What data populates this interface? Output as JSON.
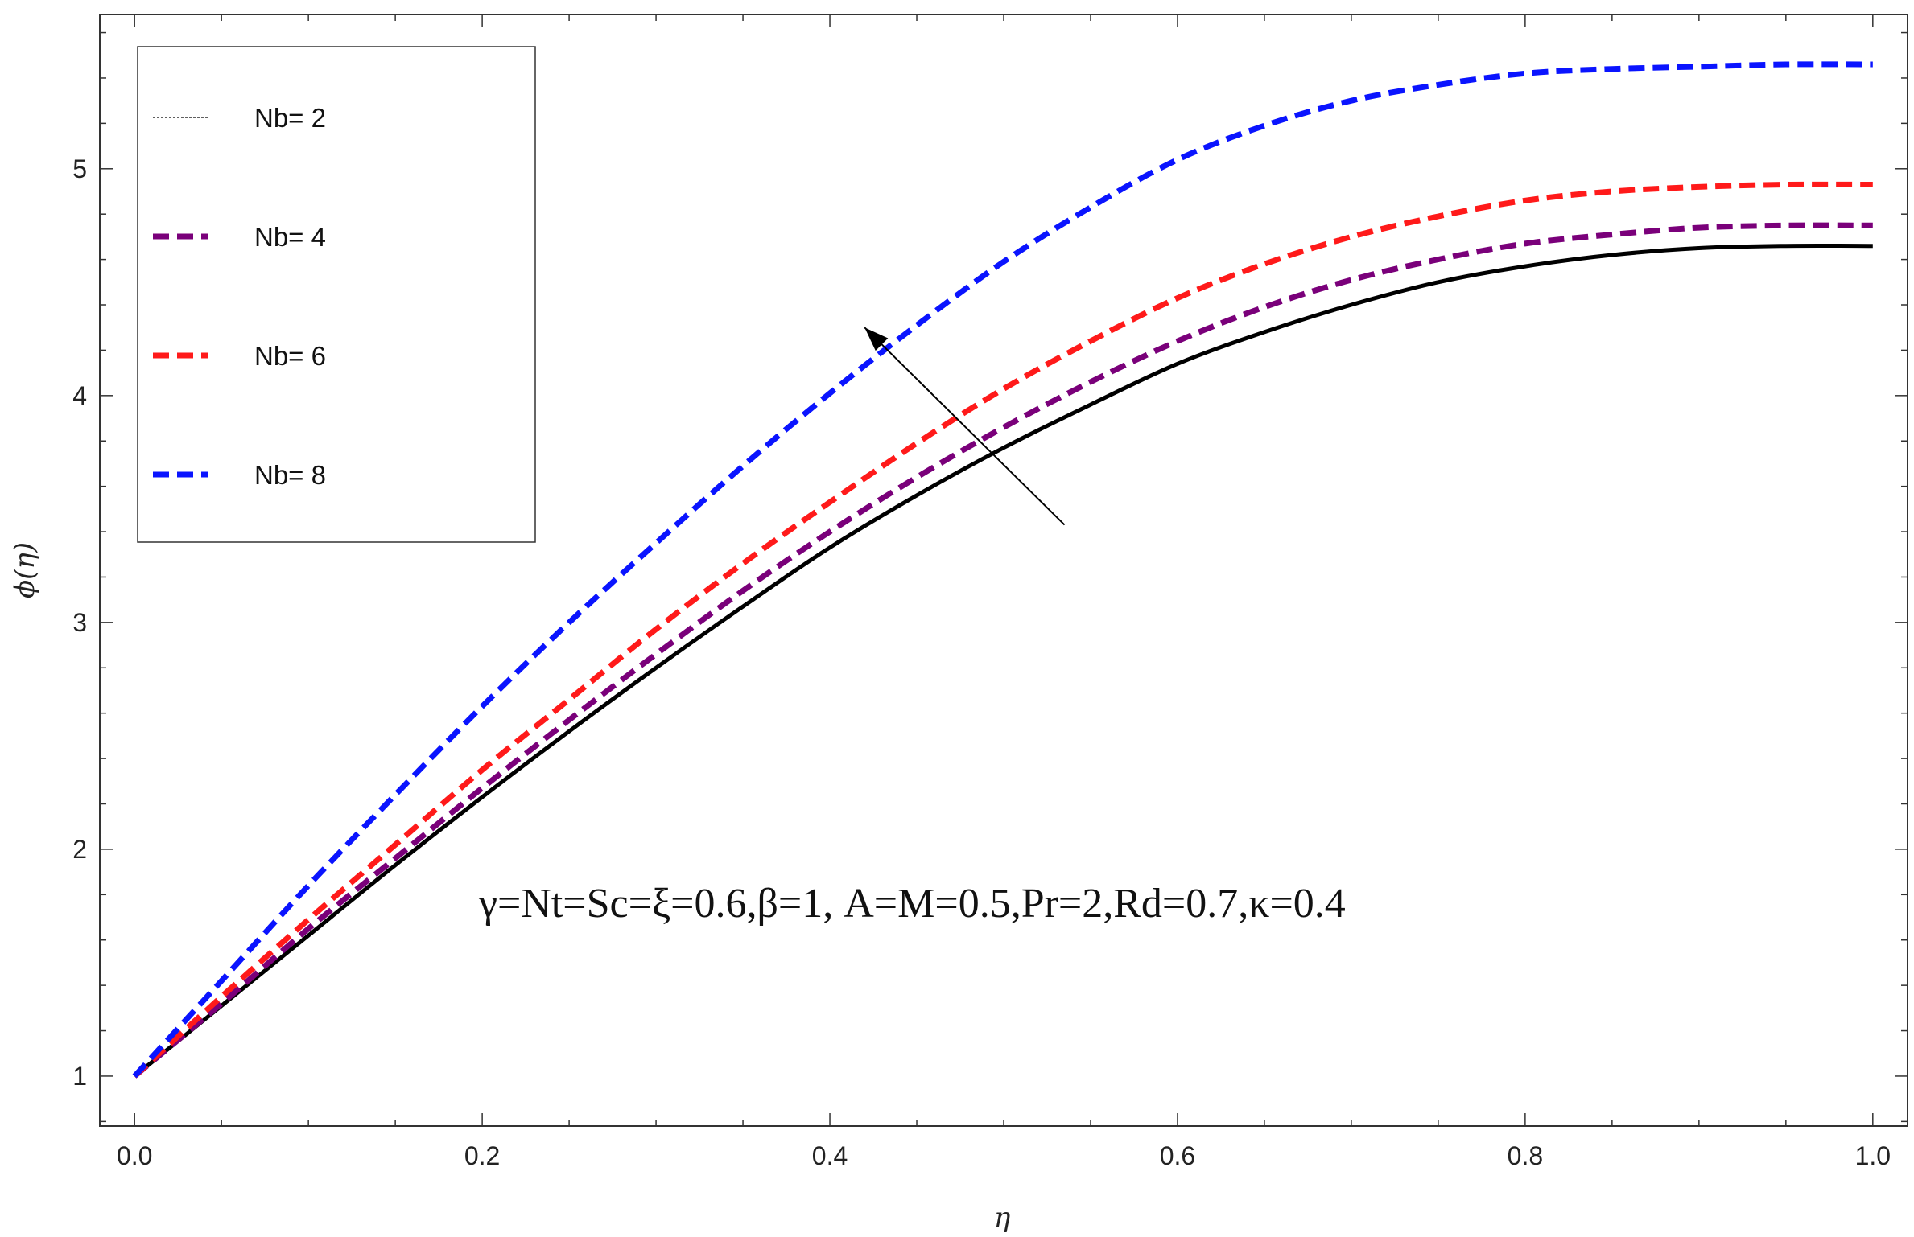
{
  "chart_data": {
    "type": "line",
    "xlabel": "η",
    "ylabel": "ϕ(η)",
    "xlim": [
      -0.02,
      1.02
    ],
    "ylim": [
      0.78,
      5.68
    ],
    "x_ticks": [
      "0.0",
      "0.2",
      "0.4",
      "0.6",
      "0.8",
      "1.0"
    ],
    "y_ticks": [
      "1",
      "2",
      "3",
      "4",
      "5"
    ],
    "grid": false,
    "legend_position": "top-left",
    "annotation": "γ=Nt=Sc=ξ=0.6,β=1, A=M=0.5,Pr=2,Rd=0.7,κ=0.4",
    "arrow": {
      "from": [
        0.535,
        3.43
      ],
      "to": [
        0.42,
        4.3
      ]
    },
    "x": [
      0.0,
      0.05,
      0.1,
      0.15,
      0.2,
      0.25,
      0.3,
      0.35,
      0.4,
      0.45,
      0.5,
      0.55,
      0.6,
      0.65,
      0.7,
      0.75,
      0.8,
      0.85,
      0.9,
      0.95,
      1.0
    ],
    "series": [
      {
        "name": "Nb= 2",
        "color": "#000000",
        "dash": "solid",
        "legend_style": "thin-dotted",
        "values": [
          1.0,
          1.31,
          1.62,
          1.93,
          2.23,
          2.52,
          2.8,
          3.07,
          3.33,
          3.56,
          3.77,
          3.96,
          4.14,
          4.28,
          4.4,
          4.5,
          4.57,
          4.62,
          4.65,
          4.66,
          4.66
        ]
      },
      {
        "name": "Nb= 4",
        "color": "#7a007a",
        "dash": "dashed",
        "values": [
          1.0,
          1.32,
          1.65,
          1.96,
          2.27,
          2.57,
          2.86,
          3.14,
          3.4,
          3.64,
          3.86,
          4.06,
          4.24,
          4.39,
          4.51,
          4.6,
          4.67,
          4.71,
          4.74,
          4.75,
          4.75
        ]
      },
      {
        "name": "Nb= 6",
        "color": "#ff1a1a",
        "dash": "dashed",
        "values": [
          1.0,
          1.35,
          1.69,
          2.02,
          2.35,
          2.66,
          2.97,
          3.26,
          3.53,
          3.79,
          4.03,
          4.24,
          4.43,
          4.58,
          4.7,
          4.79,
          4.86,
          4.9,
          4.92,
          4.93,
          4.93
        ]
      },
      {
        "name": "Nb= 8",
        "color": "#0a14ff",
        "dash": "dashed",
        "values": [
          1.0,
          1.42,
          1.84,
          2.24,
          2.63,
          3.0,
          3.35,
          3.69,
          4.01,
          4.31,
          4.59,
          4.83,
          5.04,
          5.19,
          5.3,
          5.37,
          5.42,
          5.44,
          5.45,
          5.46,
          5.46
        ]
      }
    ]
  }
}
